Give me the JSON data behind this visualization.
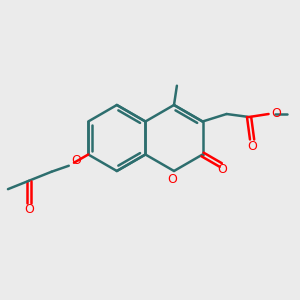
{
  "bg_color": "#ebebeb",
  "bond_color": "#2d6e6e",
  "oxygen_color": "#ff0000",
  "line_width": 1.8,
  "figsize": [
    3.0,
    3.0
  ],
  "dpi": 100,
  "xlim": [
    0,
    10
  ],
  "ylim": [
    0,
    10
  ]
}
